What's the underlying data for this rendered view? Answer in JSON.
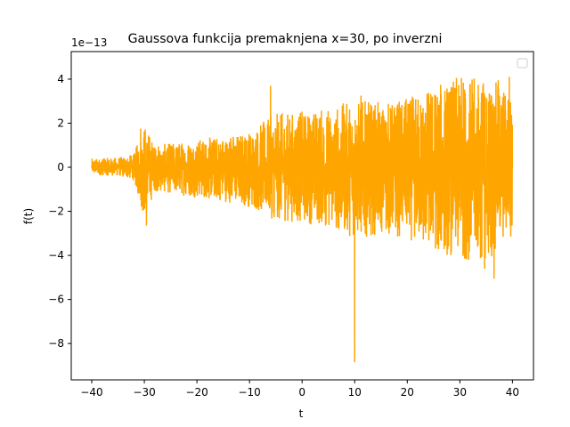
{
  "chart_data": {
    "type": "line",
    "title": "Gaussova funkcija premaknjena x=30, po inverzni",
    "xlabel": "t",
    "ylabel": "f(t)",
    "offset_text": "1e−13",
    "scale": 1e-13,
    "xlim": [
      -43.9,
      44.0
    ],
    "ylim": [
      -9.65,
      5.25
    ],
    "xticks": [
      -40,
      -30,
      -20,
      -10,
      0,
      10,
      20,
      30,
      40
    ],
    "xtick_labels": [
      "−40",
      "−30",
      "−20",
      "−10",
      "0",
      "10",
      "20",
      "30",
      "40"
    ],
    "yticks": [
      -8,
      -6,
      -4,
      -2,
      0,
      2,
      4
    ],
    "ytick_labels": [
      "−8",
      "−6",
      "−4",
      "−2",
      "0",
      "2",
      "4"
    ],
    "grid": false,
    "legend": {
      "placement": "upper right",
      "entries": []
    },
    "series": [
      {
        "color": "#ffa500",
        "x_range": [
          -40,
          40
        ],
        "envelope": {
          "t": [
            -40,
            -35,
            -32,
            -30,
            -28,
            -25,
            -20,
            -15,
            -10,
            -5,
            0,
            5,
            10,
            15,
            20,
            25,
            30,
            35,
            40
          ],
          "upper": [
            0.45,
            0.5,
            0.6,
            1.75,
            0.9,
            1.0,
            1.2,
            1.3,
            1.5,
            2.5,
            2.6,
            2.7,
            2.9,
            2.8,
            3.0,
            3.6,
            4.0,
            3.8,
            4.1
          ],
          "lower": [
            -0.3,
            -0.35,
            -0.6,
            -2.65,
            -1.2,
            -1.3,
            -1.5,
            -1.7,
            -2.0,
            -2.4,
            -2.5,
            -2.8,
            -3.4,
            -3.2,
            -3.4,
            -4.0,
            -4.3,
            -4.6,
            -2.6
          ]
        },
        "spikes": [
          {
            "x": -30.7,
            "y": 1.75
          },
          {
            "x": -29.6,
            "y": -2.65
          },
          {
            "x": -6.0,
            "y": 3.7
          },
          {
            "x": 10.0,
            "y": -8.85
          },
          {
            "x": 11.2,
            "y": 3.25
          },
          {
            "x": 30.3,
            "y": 4.05
          },
          {
            "x": 34.7,
            "y": -4.6
          },
          {
            "x": 36.5,
            "y": -5.05
          },
          {
            "x": 37.3,
            "y": 3.95
          },
          {
            "x": 39.4,
            "y": 4.1
          }
        ]
      }
    ]
  }
}
